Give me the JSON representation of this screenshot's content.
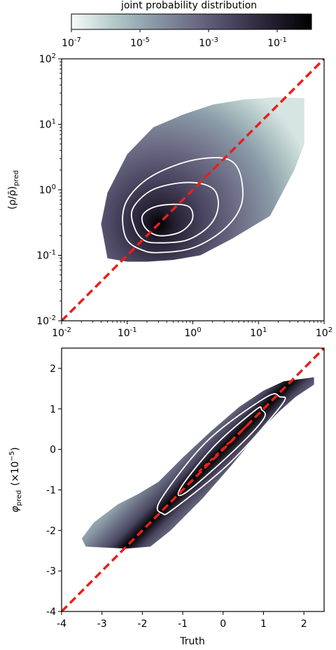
{
  "colorbar": {
    "label": "joint probability distribution",
    "scale": "log",
    "range": [
      1e-07,
      1
    ],
    "ticks": [
      {
        "value": 1e-07,
        "base": "10",
        "exp": "-7"
      },
      {
        "value": 1e-05,
        "base": "10",
        "exp": "-5"
      },
      {
        "value": 0.001,
        "base": "10",
        "exp": "-3"
      },
      {
        "value": 0.1,
        "base": "10",
        "exp": "-1"
      }
    ],
    "colors": [
      "#f7fbfb",
      "#b8cccb",
      "#8b9ca8",
      "#6f6f88",
      "#4a4560",
      "#241f30",
      "#000000"
    ]
  },
  "chart_data": [
    {
      "type": "heatmap",
      "title": "",
      "xlabel": "",
      "ylabel_text": "(ρ/ρ̄)",
      "ylabel_sub": "pred",
      "xscale": "log",
      "yscale": "log",
      "xlim": [
        0.01,
        100
      ],
      "ylim": [
        0.01,
        100
      ],
      "xticks": [
        {
          "value": 0.01,
          "base": "10",
          "exp": "-2"
        },
        {
          "value": 0.1,
          "base": "10",
          "exp": "-1"
        },
        {
          "value": 1,
          "base": "10",
          "exp": "0"
        },
        {
          "value": 10,
          "base": "10",
          "exp": "1"
        },
        {
          "value": 100,
          "base": "10",
          "exp": "2"
        }
      ],
      "yticks": [
        {
          "value": 0.01,
          "base": "10",
          "exp": "-2"
        },
        {
          "value": 0.1,
          "base": "10",
          "exp": "-1"
        },
        {
          "value": 1,
          "base": "10",
          "exp": "0"
        },
        {
          "value": 10,
          "base": "10",
          "exp": "1"
        },
        {
          "value": 100,
          "base": "10",
          "exp": "2"
        }
      ],
      "distribution": {
        "outline": [
          [
            0.05,
            0.09
          ],
          [
            0.04,
            0.3
          ],
          [
            0.05,
            0.9
          ],
          [
            0.1,
            3.5
          ],
          [
            0.25,
            9
          ],
          [
            0.7,
            14
          ],
          [
            2,
            20
          ],
          [
            6,
            24
          ],
          [
            20,
            26
          ],
          [
            50,
            25
          ],
          [
            50,
            5
          ],
          [
            35,
            2
          ],
          [
            15,
            0.4
          ],
          [
            4,
            0.18
          ],
          [
            1.3,
            0.1
          ],
          [
            0.5,
            0.085
          ],
          [
            0.2,
            0.08
          ],
          [
            0.1,
            0.08
          ]
        ],
        "peak": [
          0.3,
          0.3
        ],
        "mode_color": "#000000"
      },
      "contours": [
        {
          "color": "#ffffff",
          "points": [
            [
              0.3,
              0.2
            ],
            [
              0.6,
              0.22
            ],
            [
              0.9,
              0.3
            ],
            [
              1,
              0.42
            ],
            [
              0.85,
              0.56
            ],
            [
              0.5,
              0.6
            ],
            [
              0.25,
              0.54
            ],
            [
              0.17,
              0.4
            ],
            [
              0.19,
              0.26
            ]
          ]
        },
        {
          "color": "#ffffff",
          "points": [
            [
              0.3,
              0.155
            ],
            [
              0.8,
              0.17
            ],
            [
              1.7,
              0.27
            ],
            [
              2.4,
              0.5
            ],
            [
              2.2,
              0.95
            ],
            [
              1.3,
              1.25
            ],
            [
              0.55,
              1.25
            ],
            [
              0.22,
              0.95
            ],
            [
              0.12,
              0.5
            ],
            [
              0.13,
              0.26
            ],
            [
              0.18,
              0.17
            ]
          ]
        },
        {
          "color": "#ffffff",
          "points": [
            [
              0.3,
              0.11
            ],
            [
              1,
              0.13
            ],
            [
              3,
              0.25
            ],
            [
              5.5,
              0.6
            ],
            [
              5.3,
              1.7
            ],
            [
              3.5,
              2.9
            ],
            [
              1.4,
              3
            ],
            [
              0.5,
              2.3
            ],
            [
              0.19,
              1.4
            ],
            [
              0.1,
              0.7
            ],
            [
              0.085,
              0.35
            ],
            [
              0.1,
              0.17
            ],
            [
              0.17,
              0.12
            ]
          ]
        }
      ],
      "reference_line": {
        "from": [
          0.01,
          0.01
        ],
        "to": [
          100,
          100
        ],
        "color": "#e8201a",
        "style": "dashed"
      }
    },
    {
      "type": "heatmap",
      "title": "",
      "xlabel": "Truth",
      "ylabel_text": "φ",
      "ylabel_sub": "pred",
      "ylabel_suffix": "(×10",
      "ylabel_exp": "−5",
      "ylabel_close": ")",
      "xscale": "linear",
      "yscale": "linear",
      "xlim": [
        -4,
        2.5
      ],
      "ylim": [
        -4,
        2.5
      ],
      "xticks": [
        {
          "value": -4,
          "label": "-4"
        },
        {
          "value": -3,
          "label": "-3"
        },
        {
          "value": -2,
          "label": "-2"
        },
        {
          "value": -1,
          "label": "-1"
        },
        {
          "value": 0,
          "label": "0"
        },
        {
          "value": 1,
          "label": "1"
        },
        {
          "value": 2,
          "label": "2"
        }
      ],
      "yticks": [
        {
          "value": -4,
          "label": "-4"
        },
        {
          "value": -3,
          "label": "-3"
        },
        {
          "value": -2,
          "label": "-2"
        },
        {
          "value": -1,
          "label": "-1"
        },
        {
          "value": 0,
          "label": "0"
        },
        {
          "value": 1,
          "label": "1"
        },
        {
          "value": 2,
          "label": "2"
        }
      ],
      "distribution": {
        "outline": [
          [
            -3.4,
            -2.4
          ],
          [
            -3.5,
            -2.2
          ],
          [
            -3.2,
            -1.8
          ],
          [
            -2.6,
            -1.35
          ],
          [
            -2.1,
            -1.1
          ],
          [
            -1.6,
            -0.8
          ],
          [
            -1,
            -0.2
          ],
          [
            -0.3,
            0.45
          ],
          [
            0.4,
            1.05
          ],
          [
            1,
            1.45
          ],
          [
            1.5,
            1.68
          ],
          [
            2.25,
            1.78
          ],
          [
            2.25,
            1.6
          ],
          [
            1.8,
            1.3
          ],
          [
            1.4,
            0.95
          ],
          [
            0.9,
            0.45
          ],
          [
            0.2,
            -0.4
          ],
          [
            -0.5,
            -1.2
          ],
          [
            -1.3,
            -2
          ],
          [
            -1.8,
            -2.4
          ],
          [
            -2.4,
            -2.45
          ]
        ],
        "peak": [
          0,
          0
        ],
        "mode_color": "#000000"
      },
      "contours": [
        {
          "color": "#ffffff",
          "points": [
            [
              -1.05,
              -0.95
            ],
            [
              -0.9,
              -1.05
            ],
            [
              0.3,
              0
            ],
            [
              1,
              0.75
            ],
            [
              0.95,
              0.98
            ],
            [
              0.8,
              0.97
            ],
            [
              -0.2,
              0.1
            ]
          ]
        },
        {
          "color": "#ffffff",
          "points": [
            [
              -1.5,
              -1.58
            ],
            [
              -1.2,
              -1.45
            ],
            [
              0.2,
              -0.3
            ],
            [
              1.45,
              1.1
            ],
            [
              1.4,
              1.3
            ],
            [
              1.05,
              1.28
            ],
            [
              -0.4,
              0.2
            ],
            [
              -1.55,
              -1.25
            ]
          ]
        }
      ],
      "inner_dashed": {
        "from": [
          -0.6,
          -0.55
        ],
        "to": [
          0.6,
          0.6
        ],
        "color": "#e8201a"
      },
      "reference_line": {
        "from": [
          -4,
          -4
        ],
        "to": [
          2.5,
          2.5
        ],
        "color": "#e8201a",
        "style": "dashed"
      }
    }
  ]
}
